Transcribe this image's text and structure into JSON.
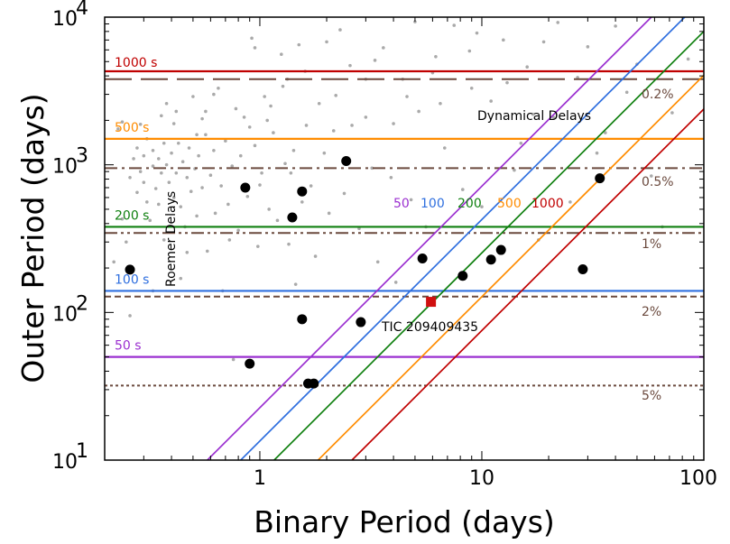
{
  "chart_data": {
    "type": "scatter",
    "xlabel": "Binary Period (days)",
    "ylabel": "Outer Period (days)",
    "xscale": "log",
    "yscale": "log",
    "xlim": [
      0.2,
      100
    ],
    "ylim": [
      10,
      10000
    ],
    "grid": false,
    "x_tick_labels": [
      {
        "value": 1,
        "label": "1"
      },
      {
        "value": 10,
        "label": "10"
      },
      {
        "value": 100,
        "label": "100"
      }
    ],
    "y_tick_labels": [
      {
        "value": 10,
        "base": "10",
        "exp": "1"
      },
      {
        "value": 100,
        "base": "10",
        "exp": "2"
      },
      {
        "value": 1000,
        "base": "10",
        "exp": "3"
      },
      {
        "value": 10000,
        "base": "10",
        "exp": "4"
      }
    ],
    "colors": {
      "50": "#9b30d0",
      "100": "#2f6fdf",
      "200": "#108010",
      "500": "#ff8c00",
      "1000": "#c00000",
      "fraction_lines": "#6b4a3e",
      "background_points": "#aaaaaa",
      "highlight": "#d01010"
    },
    "roemer_lines": [
      {
        "label": "50 s",
        "delay": 50,
        "period": 50
      },
      {
        "label": "100 s",
        "delay": 100,
        "period": 140
      },
      {
        "label": "200 s",
        "delay": 200,
        "period": 380
      },
      {
        "label": "500 s",
        "delay": 500,
        "period": 1500
      },
      {
        "label": "1000 s",
        "delay": 1000,
        "period": 4300
      }
    ],
    "dynamical_lines": [
      {
        "label": "50",
        "delay": 50,
        "x_at_10": 0.58
      },
      {
        "label": "100",
        "delay": 100,
        "x_at_10": 0.82
      },
      {
        "label": "200",
        "delay": 200,
        "x_at_10": 1.16
      },
      {
        "label": "500",
        "delay": 500,
        "x_at_10": 1.83
      },
      {
        "label": "1000",
        "delay": 1000,
        "x_at_10": 2.6
      }
    ],
    "fraction_lines": [
      {
        "label": "0.2%",
        "period": 3800,
        "style": "longdash"
      },
      {
        "label": "0.5%",
        "period": 950,
        "style": "dashdot"
      },
      {
        "label": "1%",
        "period": 345,
        "style": "dashdotdot"
      },
      {
        "label": "2%",
        "period": 128,
        "style": "dash"
      },
      {
        "label": "5%",
        "period": 32,
        "style": "dot"
      }
    ],
    "annotations": {
      "roemer": "Roemer Delays",
      "dynamical": "Dynamical Delays",
      "target": "TIC 209409435"
    },
    "systems": [
      {
        "x": 0.26,
        "y": 195
      },
      {
        "x": 0.86,
        "y": 700
      },
      {
        "x": 0.9,
        "y": 45
      },
      {
        "x": 1.4,
        "y": 440
      },
      {
        "x": 1.55,
        "y": 660
      },
      {
        "x": 1.55,
        "y": 90
      },
      {
        "x": 1.65,
        "y": 33
      },
      {
        "x": 1.75,
        "y": 33
      },
      {
        "x": 2.45,
        "y": 1060
      },
      {
        "x": 2.85,
        "y": 86
      },
      {
        "x": 5.4,
        "y": 232
      },
      {
        "x": 8.2,
        "y": 177
      },
      {
        "x": 11.0,
        "y": 228
      },
      {
        "x": 12.2,
        "y": 265
      },
      {
        "x": 28.5,
        "y": 196
      },
      {
        "x": 34.0,
        "y": 810
      }
    ],
    "target": {
      "name": "TIC 209409435",
      "x": 5.9,
      "y": 118
    },
    "background": [
      [
        0.22,
        220
      ],
      [
        0.24,
        430
      ],
      [
        0.25,
        300
      ],
      [
        0.26,
        820
      ],
      [
        0.27,
        1100
      ],
      [
        0.28,
        650
      ],
      [
        0.28,
        1300
      ],
      [
        0.29,
        900
      ],
      [
        0.3,
        1150
      ],
      [
        0.3,
        760
      ],
      [
        0.31,
        1500
      ],
      [
        0.32,
        420
      ],
      [
        0.33,
        980
      ],
      [
        0.33,
        1250
      ],
      [
        0.34,
        690
      ],
      [
        0.35,
        1100
      ],
      [
        0.35,
        540
      ],
      [
        0.36,
        880
      ],
      [
        0.37,
        1400
      ],
      [
        0.37,
        310
      ],
      [
        0.38,
        1000
      ],
      [
        0.39,
        760
      ],
      [
        0.4,
        1200
      ],
      [
        0.41,
        600
      ],
      [
        0.42,
        880
      ],
      [
        0.42,
        2300
      ],
      [
        0.43,
        1400
      ],
      [
        0.44,
        520
      ],
      [
        0.45,
        1050
      ],
      [
        0.46,
        380
      ],
      [
        0.47,
        820
      ],
      [
        0.48,
        1300
      ],
      [
        0.49,
        660
      ],
      [
        0.5,
        2900
      ],
      [
        0.51,
        940
      ],
      [
        0.52,
        450
      ],
      [
        0.53,
        1150
      ],
      [
        0.55,
        700
      ],
      [
        0.57,
        1600
      ],
      [
        0.58,
        260
      ],
      [
        0.6,
        850
      ],
      [
        0.62,
        1250
      ],
      [
        0.63,
        470
      ],
      [
        0.65,
        3300
      ],
      [
        0.67,
        720
      ],
      [
        0.7,
        1450
      ],
      [
        0.72,
        540
      ],
      [
        0.75,
        980
      ],
      [
        0.78,
        2400
      ],
      [
        0.8,
        360
      ],
      [
        0.82,
        1150
      ],
      [
        0.85,
        2100
      ],
      [
        0.88,
        610
      ],
      [
        0.92,
        7200
      ],
      [
        0.95,
        1350
      ],
      [
        0.98,
        280
      ],
      [
        1.02,
        880
      ],
      [
        1.05,
        2900
      ],
      [
        1.1,
        500
      ],
      [
        1.15,
        1650
      ],
      [
        1.2,
        420
      ],
      [
        1.25,
        5600
      ],
      [
        1.3,
        1020
      ],
      [
        1.35,
        290
      ],
      [
        1.42,
        1250
      ],
      [
        1.5,
        6500
      ],
      [
        1.55,
        560
      ],
      [
        1.62,
        1850
      ],
      [
        1.7,
        720
      ],
      [
        1.78,
        240
      ],
      [
        1.85,
        2600
      ],
      [
        1.95,
        1200
      ],
      [
        2.05,
        470
      ],
      [
        2.15,
        1700
      ],
      [
        2.3,
        8200
      ],
      [
        2.4,
        640
      ],
      [
        2.6,
        1850
      ],
      [
        2.8,
        370
      ],
      [
        3.0,
        3800
      ],
      [
        3.2,
        950
      ],
      [
        3.4,
        220
      ],
      [
        3.6,
        6200
      ],
      [
        3.9,
        820
      ],
      [
        4.1,
        160
      ],
      [
        4.4,
        3800
      ],
      [
        4.8,
        580
      ],
      [
        5.2,
        2300
      ],
      [
        5.6,
        380
      ],
      [
        6.2,
        5400
      ],
      [
        6.8,
        1300
      ],
      [
        7.5,
        8800
      ],
      [
        8.2,
        680
      ],
      [
        9.0,
        3300
      ],
      [
        10.0,
        520
      ],
      [
        11.0,
        2700
      ],
      [
        12.5,
        7000
      ],
      [
        14.0,
        920
      ],
      [
        16.0,
        4600
      ],
      [
        18.0,
        310
      ],
      [
        21.0,
        2100
      ],
      [
        25.0,
        560
      ],
      [
        30.0,
        6300
      ],
      [
        36.0,
        1650
      ],
      [
        45.0,
        3100
      ],
      [
        58.0,
        840
      ],
      [
        72.0,
        2250
      ],
      [
        85.0,
        5200
      ],
      [
        0.23,
        1750
      ],
      [
        0.29,
        1880
      ],
      [
        0.36,
        2150
      ],
      [
        0.41,
        1900
      ],
      [
        0.44,
        170
      ],
      [
        0.55,
        2050
      ],
      [
        0.68,
        140
      ],
      [
        0.73,
        310
      ],
      [
        0.9,
        1800
      ],
      [
        1.0,
        730
      ],
      [
        1.12,
        2500
      ],
      [
        1.27,
        3400
      ],
      [
        1.38,
        880
      ],
      [
        1.6,
        4300
      ],
      [
        2.2,
        2950
      ],
      [
        2.55,
        4700
      ],
      [
        3.3,
        5100
      ],
      [
        4.0,
        1900
      ],
      [
        5.0,
        9300
      ],
      [
        6.5,
        2600
      ],
      [
        8.8,
        5900
      ],
      [
        13.0,
        3600
      ],
      [
        19.0,
        6800
      ],
      [
        27.0,
        3900
      ],
      [
        40.0,
        8700
      ],
      [
        0.26,
        95
      ],
      [
        0.33,
        140
      ],
      [
        0.52,
        1600
      ],
      [
        0.76,
        48
      ],
      [
        1.08,
        2000
      ],
      [
        1.45,
        155
      ],
      [
        3.0,
        2100
      ],
      [
        6.0,
        4200
      ],
      [
        15.0,
        1400
      ],
      [
        22.0,
        9200
      ],
      [
        50.0,
        4800
      ],
      [
        0.31,
        560
      ],
      [
        0.47,
        255
      ],
      [
        0.62,
        3000
      ],
      [
        0.95,
        6200
      ],
      [
        1.33,
        3800
      ],
      [
        2.0,
        6800
      ],
      [
        4.6,
        2900
      ],
      [
        9.5,
        7800
      ],
      [
        17.0,
        2200
      ],
      [
        33.0,
        1200
      ],
      [
        65.0,
        380
      ],
      [
        0.24,
        1950
      ],
      [
        0.38,
        2600
      ],
      [
        0.57,
        2300
      ]
    ]
  }
}
